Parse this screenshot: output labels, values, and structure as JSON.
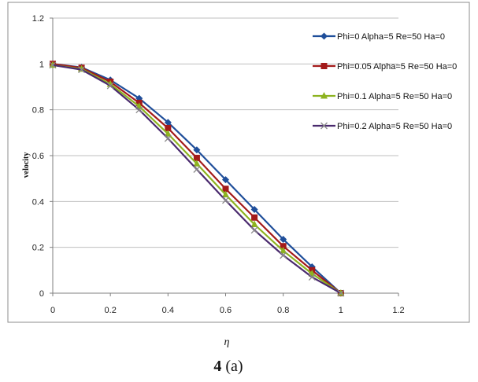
{
  "chart_data": {
    "type": "line",
    "title": "",
    "xlabel": "η",
    "ylabel": "velocity",
    "xlim": [
      0,
      1.2
    ],
    "ylim": [
      0,
      1.2
    ],
    "xticks": [
      0,
      0.2,
      0.4,
      0.6,
      0.8,
      1,
      1.2
    ],
    "yticks": [
      0,
      0.2,
      0.4,
      0.6,
      0.8,
      1,
      1.2
    ],
    "grid": "horizontal",
    "legend": "right",
    "x": [
      0,
      0.1,
      0.2,
      0.3,
      0.4,
      0.5,
      0.6,
      0.7,
      0.8,
      0.9,
      1
    ],
    "series": [
      {
        "name": "Phi=0 Alpha=5 Re=50 Ha=0",
        "color": "#1F4E9A",
        "marker": "diamond",
        "values": [
          1,
          0.985,
          0.93,
          0.85,
          0.745,
          0.625,
          0.495,
          0.365,
          0.235,
          0.115,
          0
        ]
      },
      {
        "name": "Phi=0.05 Alpha=5 Re=50 Ha=0",
        "color": "#A31A1A",
        "marker": "square",
        "values": [
          1,
          0.983,
          0.922,
          0.83,
          0.72,
          0.59,
          0.455,
          0.33,
          0.205,
          0.1,
          0
        ]
      },
      {
        "name": "Phi=0.1 Alpha=5 Re=50 Ha=0",
        "color": "#8DB320",
        "marker": "triangle",
        "values": [
          0.995,
          0.978,
          0.912,
          0.815,
          0.695,
          0.565,
          0.43,
          0.3,
          0.185,
          0.085,
          0
        ]
      },
      {
        "name": "Phi=0.2 Alpha=5 Re=50 Ha=0",
        "color": "#4A2A6E",
        "marker": "x",
        "values": [
          0.995,
          0.975,
          0.905,
          0.8,
          0.675,
          0.54,
          0.405,
          0.275,
          0.165,
          0.07,
          0
        ]
      }
    ]
  },
  "caption": {
    "number": "4",
    "text": " (a)"
  }
}
